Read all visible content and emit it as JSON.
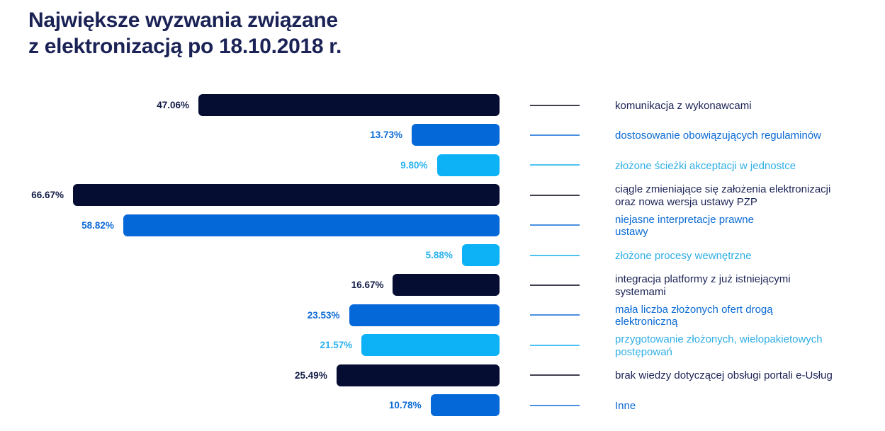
{
  "title": {
    "line1": "Największe wyzwania związane",
    "line2": "z elektronizacją po 18.10.2018 r.",
    "color": "#1B2356"
  },
  "palette": {
    "navy": {
      "bar": "#060D33",
      "value_text": "#131C47",
      "label_text": "#1B2356",
      "line": "#40404F"
    },
    "blue": {
      "bar": "#0568D9",
      "value_text": "#0B6AD4",
      "label_text": "#0B6AD4",
      "line": "#4A8FDF"
    },
    "cyan": {
      "bar": "#0CB2F5",
      "value_text": "#2BB2EF",
      "label_text": "#30AEE6",
      "line": "#4EC2F2"
    }
  },
  "chart_data": {
    "type": "bar",
    "orientation": "horizontal",
    "title": "Największe wyzwania związane z elektronizacją po 18.10.2018 r.",
    "xlabel": "",
    "ylabel": "",
    "xlim": [
      0,
      66.67
    ],
    "grid": false,
    "legend": false,
    "value_format": "percent",
    "categories": [
      "komunikacja z wykonawcami",
      "dostosowanie obowiązujących regulaminów",
      "złożone ścieżki akceptacji w jednostce",
      "ciągle zmieniające się założenia elektronizacji oraz nowa wersja ustawy PZP",
      "niejasne interpretacje prawne ustawy",
      "złożone procesy wewnętrzne",
      "integracja platformy z już istniejącymi systemami",
      "mała liczba złożonych ofert drogą elektroniczną",
      "przygotowanie złożonych, wielopakietowych postępowań",
      "brak wiedzy dotyczącej obsługi portali e-Usług",
      "Inne"
    ],
    "values": [
      47.06,
      13.73,
      9.8,
      66.67,
      58.82,
      5.88,
      16.67,
      23.53,
      21.57,
      25.49,
      10.78
    ],
    "bars": [
      {
        "value": 47.06,
        "value_label": "47.06%",
        "color": "navy",
        "category_lines": [
          "komunikacja z wykonawcami"
        ]
      },
      {
        "value": 13.73,
        "value_label": "13.73%",
        "color": "blue",
        "category_lines": [
          "dostosowanie obowiązujących regulaminów"
        ]
      },
      {
        "value": 9.8,
        "value_label": "9.80%",
        "color": "cyan",
        "category_lines": [
          "złożone ścieżki akceptacji w jednostce"
        ]
      },
      {
        "value": 66.67,
        "value_label": "66.67%",
        "color": "navy",
        "category_lines": [
          "ciągle zmieniające się założenia elektronizacji",
          "oraz nowa wersja ustawy PZP"
        ]
      },
      {
        "value": 58.82,
        "value_label": "58.82%",
        "color": "blue",
        "category_lines": [
          "niejasne interpretacje prawne",
          "ustawy"
        ]
      },
      {
        "value": 5.88,
        "value_label": "5.88%",
        "color": "cyan",
        "category_lines": [
          "złożone procesy wewnętrzne"
        ]
      },
      {
        "value": 16.67,
        "value_label": "16.67%",
        "color": "navy",
        "category_lines": [
          "integracja platformy z już istniejącymi",
          "systemami"
        ]
      },
      {
        "value": 23.53,
        "value_label": "23.53%",
        "color": "blue",
        "category_lines": [
          "mała liczba złożonych ofert drogą",
          "elektroniczną"
        ]
      },
      {
        "value": 21.57,
        "value_label": "21.57%",
        "color": "cyan",
        "category_lines": [
          "przygotowanie złożonych, wielopakietowych",
          "postępowań"
        ]
      },
      {
        "value": 25.49,
        "value_label": "25.49%",
        "color": "navy",
        "category_lines": [
          "brak wiedzy dotyczącej obsługi portali e-Usług"
        ]
      },
      {
        "value": 10.78,
        "value_label": "10.78%",
        "color": "blue",
        "category_lines": [
          "Inne"
        ]
      }
    ]
  }
}
